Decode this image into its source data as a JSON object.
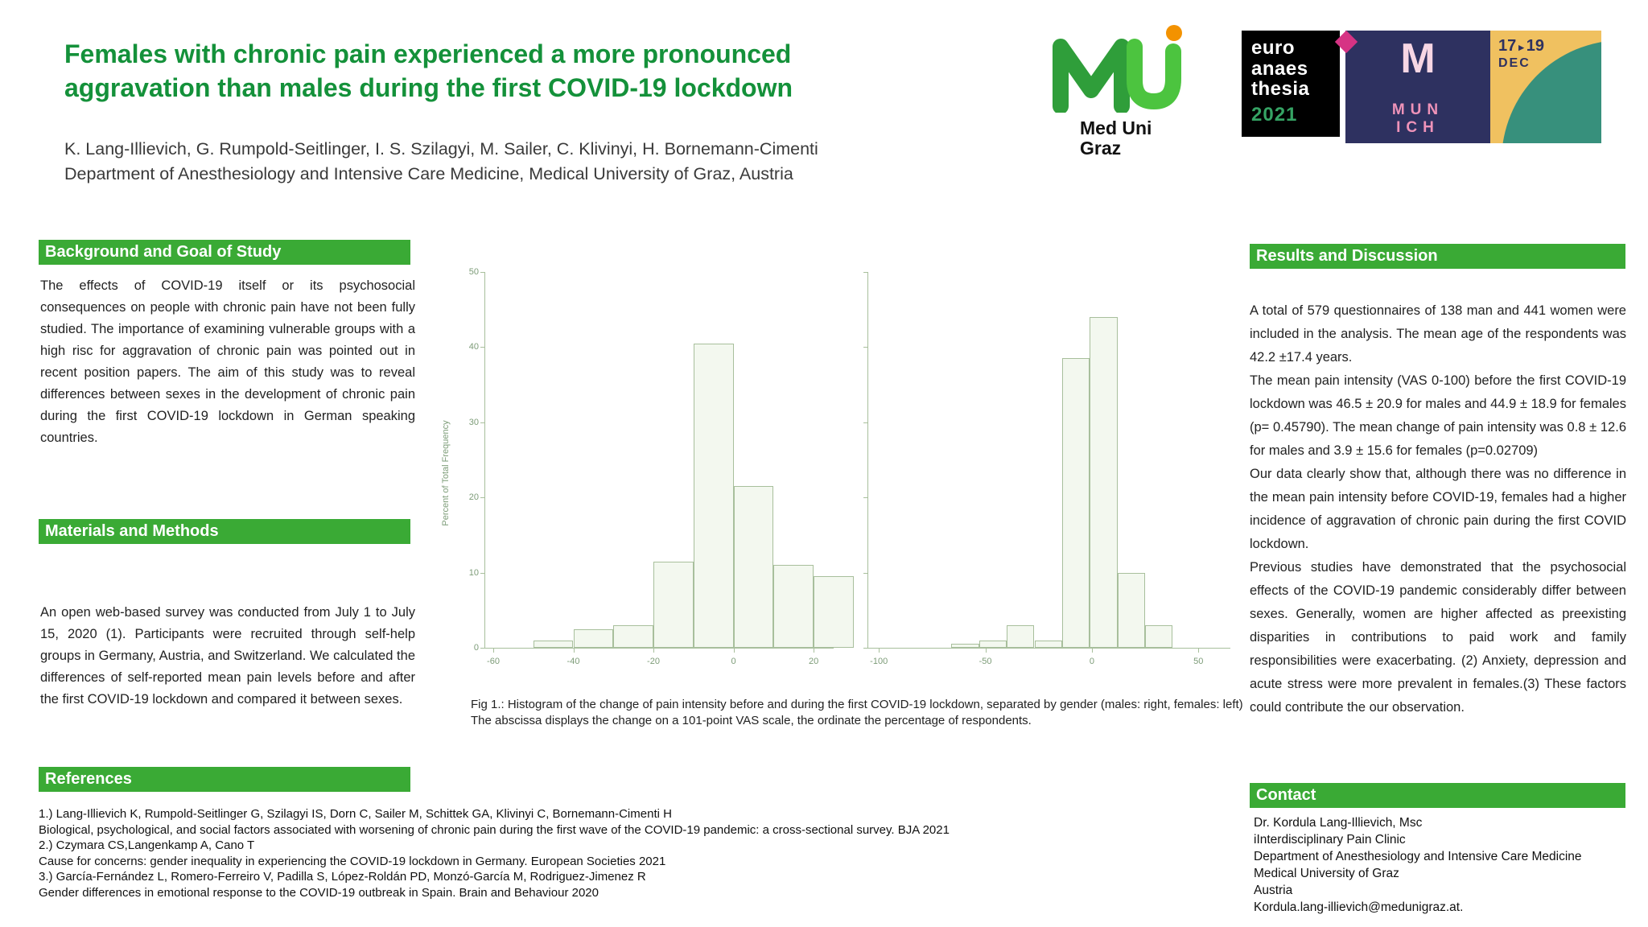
{
  "poster": {
    "title": "Females with chronic pain experienced a more pronounced aggravation than males during the first COVID-19 lockdown",
    "authors": "K. Lang-Illievich, G. Rumpold-Seitlinger, I. S. Szilagyi, M. Sailer, C. Klivinyi, H. Bornemann-Cimenti",
    "affiliation": "Department of Anesthesiology and Intensive Care Medicine, Medical University of Graz, Austria"
  },
  "logos": {
    "meduni": {
      "line1": "Med Uni",
      "line2": "Graz"
    },
    "euroanaesthesia": {
      "line1": "euro",
      "line2": "anaes",
      "line3": "thesia",
      "year": "2021"
    },
    "munich": {
      "letter": "M",
      "city_line1": "MUN",
      "city_line2": "ICH",
      "date_from": "17",
      "date_separator": "▸",
      "date_to": "19",
      "month": "DEC"
    }
  },
  "sections": {
    "background": {
      "heading": "Background and Goal of Study",
      "body": "The effects of COVID-19 itself or its psychosocial consequences on people with chronic pain have not been fully studied. The importance of examining vulnerable groups with a high risc for aggravation of chronic pain was pointed out in recent position papers. The aim of this study was to reveal differences between sexes in the development of chronic pain during the first COVID-19 lockdown in German speaking countries."
    },
    "methods": {
      "heading": "Materials and Methods",
      "body": "An open web-based survey was conducted from July 1 to July 15, 2020 (1). Participants were recruited through self-help groups in Germany, Austria, and Switzerland. We calculated the differences of self-reported mean pain levels before and after the first COVID-19 lockdown and compared it between sexes."
    },
    "references": {
      "heading": "References",
      "lines": [
        "1.) Lang-Illievich K, Rumpold-Seitlinger G, Szilagyi IS, Dorn C, Sailer M, Schittek GA, Klivinyi C, Bornemann-Cimenti H",
        "Biological, psychological, and social factors associated with worsening of chronic pain during the first wave of the COVID-19 pandemic: a cross-sectional survey. BJA 2021",
        "2.) Czymara CS,Langenkamp A, Cano T",
        "Cause for concerns: gender inequality in experiencing the COVID-19 lockdown in Germany. European Societies 2021",
        "3.) García-Fernández L, Romero-Ferreiro V, Padilla S, López-Roldán PD, Monzó-García M, Rodriguez-Jimenez R",
        "Gender differences in emotional response to the COVID-19 outbreak in Spain. Brain and Behaviour 2020"
      ]
    },
    "results": {
      "heading": "Results and Discussion",
      "paragraphs": [
        "A total of 579 questionnaires of 138 man and 441 women were included in the analysis. The mean age of the respondents was 42.2 ±17.4 years.",
        "The mean pain intensity (VAS 0-100) before the first COVID-19 lockdown was 46.5 ± 20.9 for males and 44.9 ± 18.9 for females (p= 0.45790). The mean change of pain intensity was 0.8 ± 12.6 for males and 3.9 ± 15.6 for females (p=0.02709)",
        "Our data clearly show that, although there was no difference in the mean pain intensity before COVID-19, females had a higher incidence of aggravation of chronic pain during the first COVID lockdown.",
        "Previous studies have demonstrated that the psychosocial effects of the COVID-19 pandemic considerably differ between sexes. Generally, women are higher affected as preexisting disparities in contributions to paid work and family responsibilities were exacerbating. (2) Anxiety, depression and acute stress were more prevalent in females.(3) These factors could contribute the our observation."
      ]
    },
    "contact": {
      "heading": "Contact",
      "lines": [
        "Dr. Kordula Lang-Illievich, Msc",
        "iInterdisciplinary Pain Clinic",
        "Department of Anesthesiology and Intensive Care Medicine",
        "Medical University of Graz",
        "Austria",
        "Kordula.lang-illievich@medunigraz.at."
      ]
    }
  },
  "figure": {
    "caption": "Fig 1.: Histogram of the change of pain intensity before and during the first COVID-19 lockdown, separated by gender (males: right, females: left) The abscissa displays the change on a 101-point VAS scale, the ordinate the percentage of respondents."
  },
  "chart_data": [
    {
      "type": "bar",
      "subtype": "histogram",
      "group": "females",
      "title": "",
      "xlabel": "",
      "ylabel": "Percent of Total Frequency",
      "xlim": [
        -62,
        25
      ],
      "ylim": [
        0,
        50
      ],
      "xticks": [
        -60,
        -40,
        -20,
        0,
        20
      ],
      "yticks": [
        0,
        10,
        20,
        30,
        40,
        50
      ],
      "show_ytick_labels": true,
      "bin_edges": [
        -50,
        -40,
        -30,
        -20,
        -10,
        0,
        10,
        20,
        30
      ],
      "values": [
        1,
        2.5,
        3,
        11.5,
        40.5,
        21.5,
        11,
        9.5
      ],
      "grid": false,
      "legend": false
    },
    {
      "type": "bar",
      "subtype": "histogram",
      "group": "males",
      "title": "",
      "xlabel": "",
      "ylabel": "",
      "xlim": [
        -105,
        65
      ],
      "ylim": [
        0,
        50
      ],
      "xticks": [
        -100,
        -50,
        0,
        50
      ],
      "yticks": [
        0,
        10,
        20,
        30,
        40,
        50
      ],
      "show_ytick_labels": false,
      "bin_edges": [
        -66,
        -53,
        -40,
        -27,
        -14,
        -1,
        12,
        25,
        38
      ],
      "values": [
        0.5,
        1,
        3,
        1,
        38.5,
        44,
        10,
        3
      ],
      "grid": false,
      "legend": false
    }
  ],
  "colors": {
    "accent": "#3aaa35",
    "title": "#14913a",
    "bar-fill": "#f3f8ef",
    "bar-stroke": "#a8bf9c",
    "axis": "#a8bf9c",
    "tick": "#7d9c78",
    "euro-year": "#35a364",
    "mun-navy": "#2e3160",
    "mun-pink": "#ef93b9",
    "mun-magenta": "#d63384",
    "mun-yellow": "#f0c160",
    "mun-teal": "#37907c",
    "logo-green-dark": "#2f9e3a",
    "logo-green-light": "#4cc43f",
    "logo-orange": "#f39200"
  }
}
